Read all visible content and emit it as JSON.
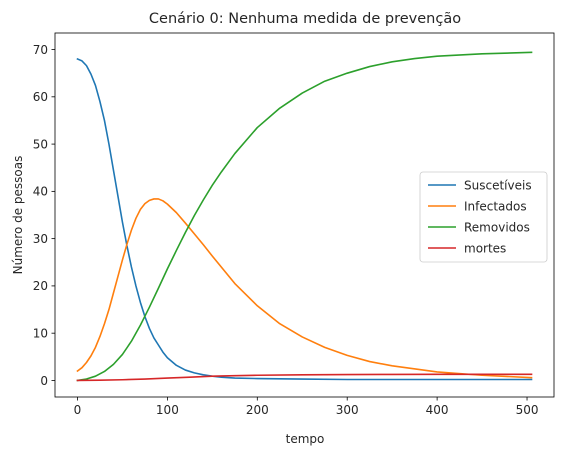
{
  "chart_data": {
    "type": "line",
    "title": "Cenário 0: Nenhuma medida de prevenção",
    "xlabel": "tempo",
    "ylabel": "Número de pessoas",
    "xlim": [
      -25,
      530
    ],
    "ylim": [
      -3.5,
      73.5
    ],
    "xticks": [
      0,
      100,
      200,
      300,
      400,
      500
    ],
    "yticks": [
      0,
      10,
      20,
      30,
      40,
      50,
      60,
      70
    ],
    "grid": false,
    "legend_position": "center-right",
    "series": [
      {
        "name": "Suscetíveis",
        "color": "#1f77b4",
        "x": [
          0,
          5,
          10,
          15,
          20,
          25,
          30,
          35,
          40,
          45,
          50,
          55,
          60,
          65,
          70,
          75,
          80,
          85,
          90,
          95,
          100,
          110,
          120,
          130,
          140,
          150,
          160,
          175,
          200,
          250,
          300,
          350,
          400,
          450,
          505
        ],
        "y": [
          68,
          67.6,
          66.6,
          64.8,
          62.4,
          59,
          55,
          50,
          44.5,
          39,
          33.5,
          28.5,
          24,
          20,
          16.5,
          13.5,
          11,
          9,
          7.5,
          6,
          4.8,
          3.2,
          2.2,
          1.6,
          1.2,
          0.9,
          0.7,
          0.5,
          0.4,
          0.3,
          0.2,
          0.2,
          0.2,
          0.2,
          0.2
        ]
      },
      {
        "name": "Infectados",
        "color": "#ff7f0e",
        "x": [
          0,
          5,
          10,
          15,
          20,
          25,
          30,
          35,
          40,
          45,
          50,
          55,
          60,
          65,
          70,
          75,
          80,
          85,
          90,
          95,
          100,
          110,
          120,
          130,
          140,
          150,
          175,
          200,
          225,
          250,
          275,
          300,
          325,
          350,
          400,
          450,
          505
        ],
        "y": [
          2,
          2.7,
          3.8,
          5.2,
          7,
          9.3,
          12,
          15,
          18.5,
          22,
          25.5,
          28.8,
          31.8,
          34.3,
          36.2,
          37.4,
          38.1,
          38.4,
          38.4,
          38,
          37.3,
          35.5,
          33.3,
          31,
          28.7,
          26.3,
          20.5,
          15.8,
          12,
          9.2,
          7,
          5.3,
          4,
          3.1,
          1.8,
          1.1,
          0.6
        ]
      },
      {
        "name": "Removidos",
        "color": "#2ca02c",
        "x": [
          0,
          10,
          20,
          30,
          40,
          50,
          60,
          70,
          80,
          90,
          100,
          110,
          120,
          130,
          140,
          150,
          160,
          175,
          200,
          225,
          250,
          275,
          300,
          325,
          350,
          375,
          400,
          450,
          505
        ],
        "y": [
          0,
          0.3,
          0.9,
          1.9,
          3.4,
          5.5,
          8.3,
          11.7,
          15.5,
          19.5,
          23.6,
          27.5,
          31.3,
          34.9,
          38.2,
          41.3,
          44.1,
          48,
          53.5,
          57.6,
          60.8,
          63.3,
          65,
          66.4,
          67.4,
          68.1,
          68.6,
          69.1,
          69.4
        ]
      },
      {
        "name": "mortes",
        "color": "#d62728",
        "x": [
          0,
          25,
          50,
          75,
          100,
          125,
          150,
          175,
          200,
          250,
          300,
          350,
          400,
          450,
          505
        ],
        "y": [
          0,
          0.05,
          0.15,
          0.3,
          0.5,
          0.7,
          0.9,
          1.0,
          1.1,
          1.2,
          1.25,
          1.28,
          1.3,
          1.3,
          1.3
        ]
      }
    ]
  }
}
